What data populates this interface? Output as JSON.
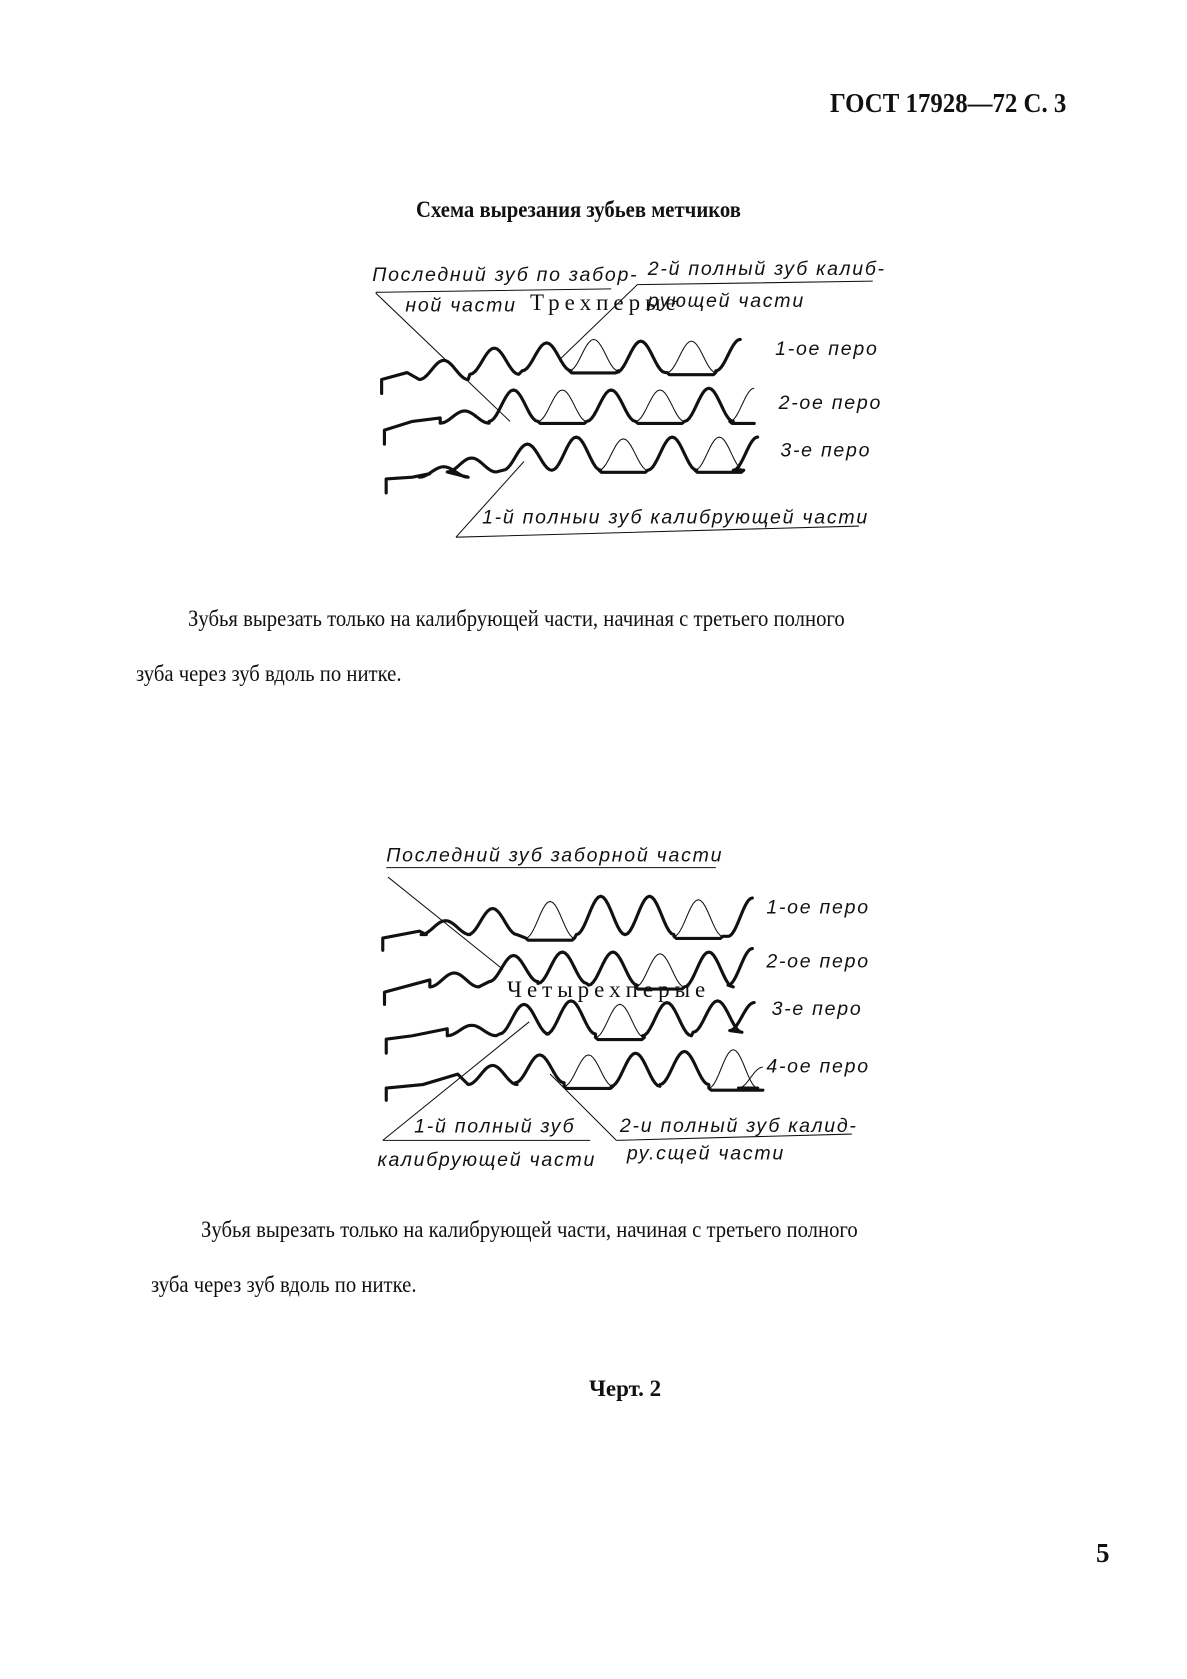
{
  "header": {
    "standard": "ГОСТ 17928—72 С. 3"
  },
  "title": "Схема вырезания зубьев метчиков",
  "section1": {
    "heading": "Трехперые",
    "labels": {
      "last_tooth_1": "Последний зуб по забор-",
      "last_tooth_2": "ной части",
      "second_full_1": "2-й полный зуб калиб-",
      "second_full_2": "рующей части",
      "first_full": "1-й полныи зуб калибрующей части",
      "land1": "1-ое перо",
      "land2": "2-ое перо",
      "land3": "3-е перо"
    },
    "para_line1": "Зубья вырезать только на калибрующей части, начиная с третьего полного",
    "para_line2": "зуба через зуб  вдоль по нитке."
  },
  "section2": {
    "heading": "Четырехперые",
    "labels": {
      "last_tooth": "Последний зуб заборной части",
      "land1": "1-ое перо",
      "land2": "2-ое перо",
      "land3": "3-е перо",
      "land4": "4-ое перо",
      "first_full_1": "1-й полный зуб",
      "first_full_2": "калибрующей части",
      "second_full_1": "2-и полный зуб калид-",
      "second_full_2": "ру.сщей части"
    },
    "para_line1": "Зубья вырезать только на калибрующей части, начиная с третьего полного",
    "para_line2": "зуба через зуб вдоль по нитке."
  },
  "figure_caption": "Черт. 2",
  "page_number": "5"
}
